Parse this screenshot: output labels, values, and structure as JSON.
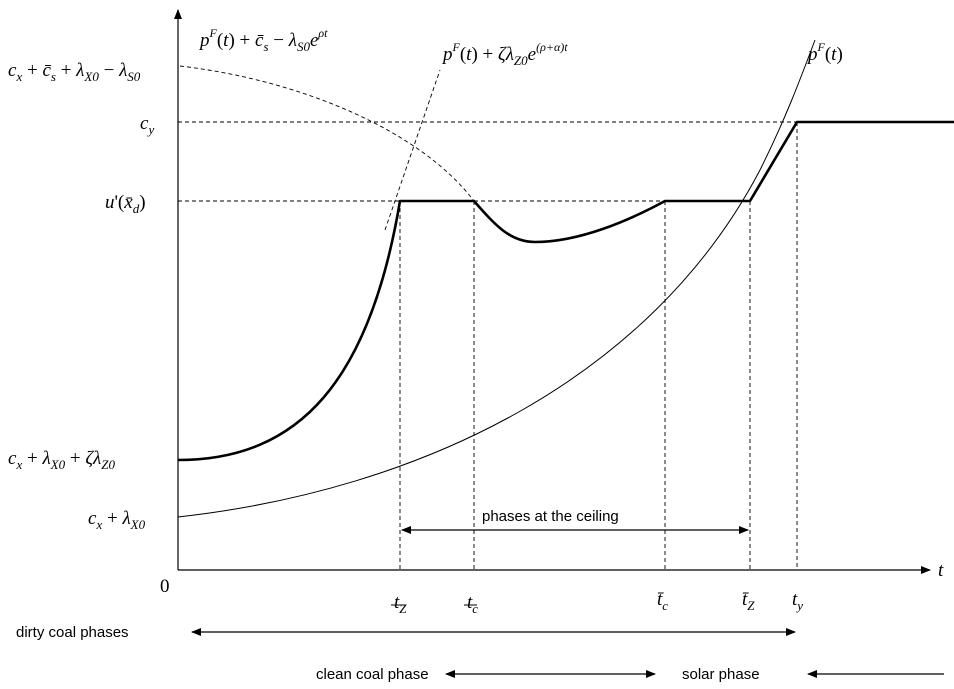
{
  "axis": {
    "origin_label": "0",
    "x_label": "t"
  },
  "y_labels": {
    "top": "c_x + c̄_s + λ_X0 − λ_S0",
    "cy": "c_y",
    "ceiling": "u'(x̄_d)",
    "start_high": "c_x + λ_X0 + ζλ_Z0",
    "start_low": "c_x + λ_X0"
  },
  "x_ticks": [
    "t_Z (underbar)",
    "t_c (underbar)",
    "t̄_c",
    "t̄_Z",
    "t_y"
  ],
  "curves": {
    "dashed_decay": "p^F(t) + c̄_s − λ_S0 e^{ρt}",
    "dashed_growth": "p^F(t) + ζλ_Z0 e^{(ρ+α)t}",
    "pf": "p^F(t)"
  },
  "annotations": {
    "ceiling": "phases at the ceiling",
    "dirty": "dirty coal phases",
    "clean": "clean coal phase",
    "solar": "solar phase"
  }
}
